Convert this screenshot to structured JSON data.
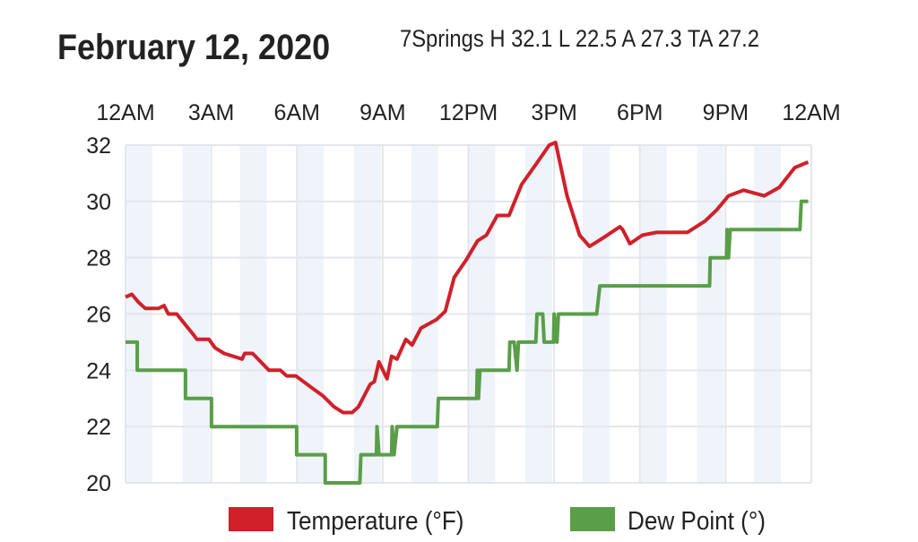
{
  "header": {
    "date": "February 12, 2020",
    "station_summary": "7Springs H 32.1 L 22.5 A 27.3 TA 27.2"
  },
  "chart_data": {
    "type": "line",
    "title": "February 12, 2020",
    "subtitle": "7Springs H 32.1 L 22.5 A 27.3 TA 27.2",
    "xlabel": "",
    "ylabel": "",
    "xlim": [
      0,
      24
    ],
    "ylim": [
      20,
      32
    ],
    "x_ticks": [
      0,
      3,
      6,
      9,
      12,
      15,
      18,
      21,
      24
    ],
    "x_tick_labels": [
      "12AM",
      "3AM",
      "6AM",
      "9AM",
      "12PM",
      "3PM",
      "6PM",
      "9PM",
      "12AM"
    ],
    "x_tick_position": "top",
    "y_ticks": [
      20,
      22,
      24,
      26,
      28,
      30,
      32
    ],
    "y_tick_labels": [
      "20",
      "22",
      "24",
      "26",
      "28",
      "30",
      "32"
    ],
    "grid": true,
    "alternating_hour_shading": true,
    "legend_position": "bottom",
    "series": [
      {
        "name": "Temperature (°F)",
        "color": "#d0202a",
        "points": [
          [
            0,
            26.6
          ],
          [
            0.22,
            26.7
          ],
          [
            0.47,
            26.4
          ],
          [
            0.69,
            26.2
          ],
          [
            1.16,
            26.2
          ],
          [
            1.35,
            26.3
          ],
          [
            1.5,
            26.0
          ],
          [
            1.79,
            26.0
          ],
          [
            2.35,
            25.3
          ],
          [
            2.5,
            25.1
          ],
          [
            2.92,
            25.1
          ],
          [
            3.13,
            24.8
          ],
          [
            3.45,
            24.6
          ],
          [
            4.08,
            24.4
          ],
          [
            4.17,
            24.6
          ],
          [
            4.45,
            24.6
          ],
          [
            5.02,
            24.0
          ],
          [
            5.42,
            24.0
          ],
          [
            5.64,
            23.8
          ],
          [
            5.96,
            23.8
          ],
          [
            6.49,
            23.4
          ],
          [
            6.9,
            23.1
          ],
          [
            7.3,
            22.7
          ],
          [
            7.62,
            22.5
          ],
          [
            7.93,
            22.5
          ],
          [
            8.15,
            22.7
          ],
          [
            8.56,
            23.5
          ],
          [
            8.71,
            23.6
          ],
          [
            8.87,
            24.3
          ],
          [
            9.15,
            23.7
          ],
          [
            9.31,
            24.5
          ],
          [
            9.5,
            24.4
          ],
          [
            9.81,
            25.1
          ],
          [
            10.03,
            24.9
          ],
          [
            10.34,
            25.5
          ],
          [
            10.88,
            25.8
          ],
          [
            11.19,
            26.1
          ],
          [
            11.5,
            27.3
          ],
          [
            11.91,
            27.9
          ],
          [
            12.32,
            28.6
          ],
          [
            12.63,
            28.8
          ],
          [
            13.01,
            29.5
          ],
          [
            13.42,
            29.5
          ],
          [
            13.86,
            30.6
          ],
          [
            14.42,
            31.4
          ],
          [
            14.83,
            32.0
          ],
          [
            15.05,
            32.1
          ],
          [
            15.45,
            30.2
          ],
          [
            15.89,
            28.8
          ],
          [
            16.24,
            28.4
          ],
          [
            16.71,
            28.7
          ],
          [
            17.3,
            29.1
          ],
          [
            17.4,
            29.0
          ],
          [
            17.65,
            28.5
          ],
          [
            18.09,
            28.8
          ],
          [
            18.59,
            28.9
          ],
          [
            19.66,
            28.9
          ],
          [
            20.28,
            29.3
          ],
          [
            20.69,
            29.7
          ],
          [
            21.1,
            30.2
          ],
          [
            21.63,
            30.4
          ],
          [
            22.35,
            30.2
          ],
          [
            22.88,
            30.5
          ],
          [
            23.42,
            31.2
          ],
          [
            23.89,
            31.4
          ]
        ]
      },
      {
        "name": "Dew Point (°)",
        "color": "#5a9e48",
        "points": [
          [
            0,
            25
          ],
          [
            0.41,
            25
          ],
          [
            0.41,
            24
          ],
          [
            2.1,
            24
          ],
          [
            2.1,
            23
          ],
          [
            3.01,
            23
          ],
          [
            3.01,
            22
          ],
          [
            5.99,
            22
          ],
          [
            5.99,
            21
          ],
          [
            6.99,
            21
          ],
          [
            6.99,
            20
          ],
          [
            8.2,
            20
          ],
          [
            8.24,
            21
          ],
          [
            8.78,
            21
          ],
          [
            8.8,
            22
          ],
          [
            8.87,
            21
          ],
          [
            9.31,
            21
          ],
          [
            9.33,
            22
          ],
          [
            9.4,
            21
          ],
          [
            9.5,
            22
          ],
          [
            10.91,
            22
          ],
          [
            10.95,
            23
          ],
          [
            12.29,
            23
          ],
          [
            12.31,
            24
          ],
          [
            12.35,
            23
          ],
          [
            12.4,
            24
          ],
          [
            13.42,
            24
          ],
          [
            13.45,
            25
          ],
          [
            13.6,
            25
          ],
          [
            13.7,
            24
          ],
          [
            13.75,
            25
          ],
          [
            14.36,
            25
          ],
          [
            14.4,
            26
          ],
          [
            14.6,
            26
          ],
          [
            14.65,
            25
          ],
          [
            14.98,
            25
          ],
          [
            15.0,
            26
          ],
          [
            15.1,
            25
          ],
          [
            15.15,
            26
          ],
          [
            16.49,
            26
          ],
          [
            16.6,
            27
          ],
          [
            20.44,
            27
          ],
          [
            20.46,
            28
          ],
          [
            21.03,
            28
          ],
          [
            21.05,
            29
          ],
          [
            21.1,
            28
          ],
          [
            21.16,
            29
          ],
          [
            23.6,
            29
          ],
          [
            23.65,
            30
          ],
          [
            23.89,
            30
          ]
        ]
      }
    ]
  }
}
